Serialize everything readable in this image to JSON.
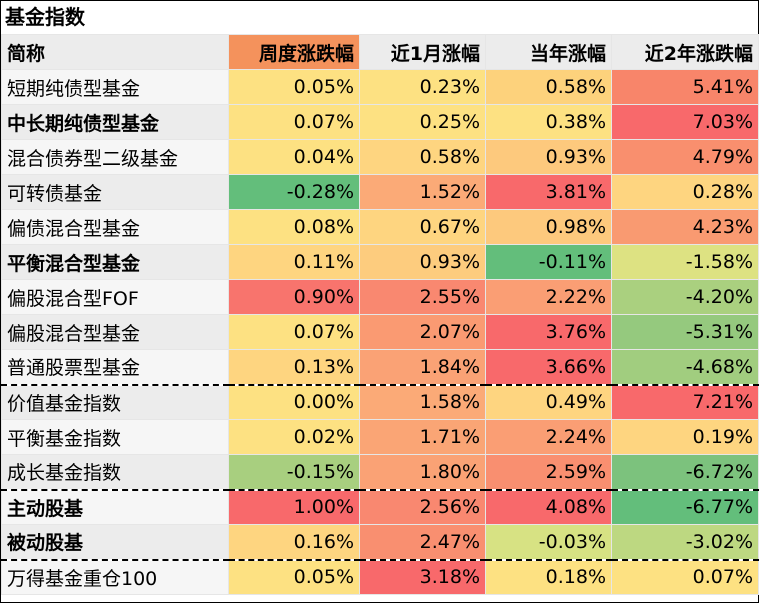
{
  "title": "基金指数",
  "headers": [
    "简称",
    "周度涨跌幅",
    "近1月涨幅",
    "当年涨幅",
    "近2年涨跌幅"
  ],
  "rows": [
    {
      "name": "短期纯债型基金",
      "bold": false,
      "values": [
        "0.05%",
        "0.23%",
        "0.58%",
        "5.41%"
      ],
      "colors": [
        "#fde182",
        "#fde182",
        "#fdd27c",
        "#f8856a"
      ]
    },
    {
      "name": "中长期纯债型基金",
      "bold": true,
      "values": [
        "0.07%",
        "0.25%",
        "0.38%",
        "7.03%"
      ],
      "colors": [
        "#fde182",
        "#fde182",
        "#fde182",
        "#f8696b"
      ]
    },
    {
      "name": "混合债券型二级基金",
      "bold": false,
      "values": [
        "0.04%",
        "0.58%",
        "0.93%",
        "4.79%"
      ],
      "colors": [
        "#fde182",
        "#fed580",
        "#fdc97d",
        "#f98f6e"
      ]
    },
    {
      "name": "可转债基金",
      "bold": false,
      "values": [
        "-0.28%",
        "1.52%",
        "3.81%",
        "0.28%"
      ],
      "colors": [
        "#63be7b",
        "#fbaa77",
        "#f8696b",
        "#fed580"
      ]
    },
    {
      "name": "偏债混合型基金",
      "bold": false,
      "values": [
        "0.08%",
        "0.67%",
        "0.98%",
        "4.23%"
      ],
      "colors": [
        "#fde182",
        "#fed580",
        "#fdc97d",
        "#f99a71"
      ]
    },
    {
      "name": "平衡混合型基金",
      "bold": true,
      "values": [
        "0.11%",
        "0.93%",
        "-0.11%",
        "-1.58%"
      ],
      "colors": [
        "#fed580",
        "#fdcc7e",
        "#63be7b",
        "#dde282"
      ]
    },
    {
      "name": "偏股混合型FOF",
      "bold": false,
      "values": [
        "0.90%",
        "2.55%",
        "2.22%",
        "-4.20%"
      ],
      "colors": [
        "#f8746d",
        "#f98870",
        "#fa9e74",
        "#aad07f"
      ]
    },
    {
      "name": "偏股混合型基金",
      "bold": false,
      "values": [
        "0.07%",
        "2.07%",
        "3.76%",
        "-5.31%"
      ],
      "colors": [
        "#fde182",
        "#fa9a72",
        "#f8696b",
        "#95c97e"
      ]
    },
    {
      "name": "普通股票型基金",
      "bold": false,
      "values": [
        "0.13%",
        "1.84%",
        "3.66%",
        "-4.68%"
      ],
      "colors": [
        "#fed580",
        "#faa275",
        "#f8696b",
        "#a1cd7f"
      ],
      "sep": true
    },
    {
      "name": "价值基金指数",
      "bold": false,
      "values": [
        "0.00%",
        "1.58%",
        "0.49%",
        "7.21%"
      ],
      "colors": [
        "#fde182",
        "#fbaa77",
        "#fed580",
        "#f8696b"
      ]
    },
    {
      "name": "平衡基金指数",
      "bold": false,
      "values": [
        "0.02%",
        "1.71%",
        "2.24%",
        "0.19%"
      ],
      "colors": [
        "#fde182",
        "#faa575",
        "#fa9e74",
        "#fed580"
      ]
    },
    {
      "name": "成长基金指数",
      "bold": false,
      "values": [
        "-0.15%",
        "1.80%",
        "2.59%",
        "-6.72%"
      ],
      "colors": [
        "#a8cf7f",
        "#faa275",
        "#f98f70",
        "#7cc27d"
      ],
      "sep": true
    },
    {
      "name": "主动股基",
      "bold": true,
      "values": [
        "1.00%",
        "2.56%",
        "4.08%",
        "-6.77%"
      ],
      "colors": [
        "#f8696b",
        "#f98870",
        "#f8696b",
        "#63be7b"
      ]
    },
    {
      "name": "被动股基",
      "bold": true,
      "values": [
        "0.16%",
        "2.47%",
        "-0.03%",
        "-3.02%"
      ],
      "colors": [
        "#fed580",
        "#f98f70",
        "#d7e283",
        "#bdd881"
      ],
      "sep": true
    },
    {
      "name": "万得基金重仓100",
      "bold": false,
      "values": [
        "0.05%",
        "3.18%",
        "0.18%",
        "0.07%"
      ],
      "colors": [
        "#fde182",
        "#f8696b",
        "#fde182",
        "#fde182"
      ]
    }
  ]
}
